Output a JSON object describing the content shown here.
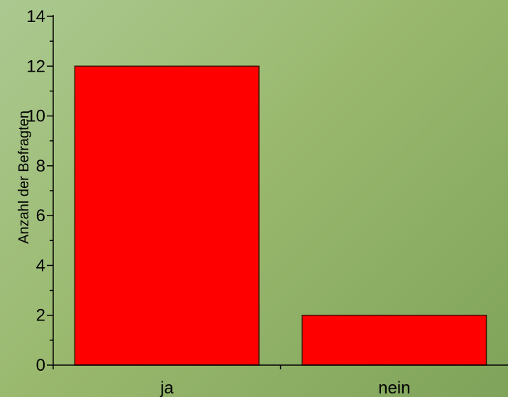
{
  "chart_data": {
    "type": "bar",
    "title": "",
    "xlabel": "",
    "ylabel": "Anzahl der Befragten",
    "categories": [
      "ja",
      "nein"
    ],
    "values": [
      12,
      2
    ],
    "ylim": [
      0,
      14
    ],
    "yticks": [
      0,
      2,
      4,
      6,
      8,
      10,
      12,
      14
    ],
    "grid": false,
    "legend": "none"
  },
  "colors": {
    "bar_fill": "#ff0000",
    "bar_stroke": "#3a1500",
    "axis": "#000000",
    "background_start": "#abc990",
    "background_end": "#7fa35a"
  }
}
